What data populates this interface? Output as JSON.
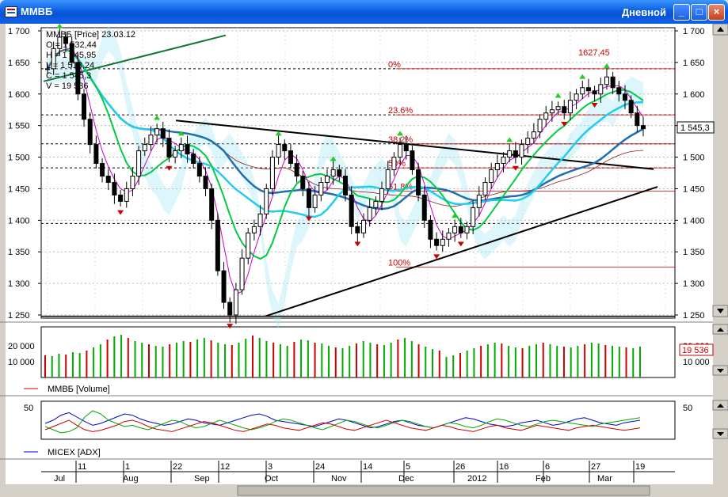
{
  "window": {
    "title": "ММВБ",
    "period": "Дневной",
    "minimize": "_",
    "maximize": "□",
    "close": "×"
  },
  "legend": {
    "header": "ММВБ [Price] 23.03.12",
    "lines": [
      "O = 1 532,44",
      "H = 1 545,95",
      "L = 1 518,24",
      "C = 1 545,3",
      "V = 19 536"
    ]
  },
  "volume_panel": {
    "label": "ММВБ [Volume]",
    "current": "19 536"
  },
  "adx_panel": {
    "label": "MICEX [ADX]"
  },
  "fib": [
    {
      "label": "0%",
      "value": 1640
    },
    {
      "label": "23.6%",
      "value": 1567
    },
    {
      "label": "38.2%",
      "value": 1521
    },
    {
      "label": "50%",
      "value": 1483
    },
    {
      "label": "61.8%",
      "value": 1446
    },
    {
      "label": "100%",
      "value": 1326
    }
  ],
  "peak_label": "1627,45",
  "last_price_label": "1 545,3",
  "time_axis": {
    "days": [
      "11",
      "1",
      "22",
      "12",
      "3",
      "24",
      "14",
      "5",
      "26",
      "16",
      "6",
      "27",
      "19"
    ],
    "months": [
      "Jul",
      "Aug",
      "Sep",
      "Oct",
      "Nov",
      "Dec",
      "2012",
      "Feb",
      "Mar"
    ]
  },
  "colors": {
    "bull": "#00aa00",
    "bear": "#cc0000",
    "sma_fast": "#cc00cc",
    "ema_green": "#00cc44",
    "ma_cyan": "#22ccee",
    "ma_blue": "#1f6fb0",
    "ma_brown": "#8b1a1a",
    "trend": "#000000"
  },
  "chart_data": [
    {
      "type": "line",
      "title": "ММВБ [Price]",
      "ylim": [
        1245,
        1705
      ],
      "y_ticks": [
        "1 700",
        "1 650",
        "1 600",
        "1 550",
        "1 500",
        "1 450",
        "1 400",
        "1 350",
        "1 300",
        "1 250"
      ],
      "x_range": [
        "Jul 2011",
        "Mar 2012"
      ],
      "series": [
        {
          "name": "Close",
          "values": [
            1640,
            1672,
            1690,
            1680,
            1650,
            1600,
            1560,
            1520,
            1490,
            1470,
            1460,
            1440,
            1430,
            1450,
            1470,
            1510,
            1520,
            1535,
            1545,
            1530,
            1500,
            1510,
            1520,
            1505,
            1490,
            1470,
            1450,
            1400,
            1320,
            1270,
            1250,
            1290,
            1340,
            1380,
            1390,
            1410,
            1450,
            1500,
            1520,
            1510,
            1490,
            1470,
            1450,
            1420,
            1440,
            1460,
            1470,
            1480,
            1470,
            1440,
            1390,
            1380,
            1400,
            1420,
            1430,
            1450,
            1480,
            1500,
            1520,
            1510,
            1480,
            1440,
            1400,
            1370,
            1360,
            1370,
            1380,
            1390,
            1380,
            1390,
            1420,
            1440,
            1460,
            1480,
            1490,
            1500,
            1510,
            1500,
            1520,
            1530,
            1540,
            1560,
            1570,
            1575,
            1580,
            1570,
            1590,
            1600,
            1610,
            1605,
            1600,
            1615,
            1627,
            1610,
            1600,
            1590,
            1570,
            1550,
            1545
          ]
        }
      ]
    },
    {
      "type": "bar",
      "title": "ММВБ [Volume]",
      "ylim": [
        0,
        32000
      ],
      "y_ticks": [
        "20 000",
        "10 000"
      ],
      "values": [
        14000,
        13500,
        15000,
        14500,
        16000,
        15500,
        17000,
        19000,
        21000,
        24000,
        26000,
        27000,
        25000,
        23000,
        22000,
        21000,
        20000,
        19500,
        21000,
        22000,
        23000,
        22500,
        24000,
        25000,
        23500,
        22000,
        21000,
        20500,
        22000,
        24500,
        26500,
        25000,
        23000,
        22000,
        21000,
        20000,
        22500,
        24000,
        23500,
        22000,
        21500,
        20000,
        19000,
        18500,
        20000,
        21500,
        23000,
        22000,
        21000,
        20500,
        22000,
        24000,
        25000,
        23000,
        21000,
        19500,
        18000,
        17000,
        13000,
        14000,
        15500,
        17000,
        18500,
        20000,
        21000,
        22000,
        21500,
        20000,
        19000,
        18500,
        20000,
        21000,
        22000,
        21000,
        20000,
        19500,
        19000,
        20000,
        21000,
        22000,
        21500,
        20500,
        20000,
        19500,
        19000,
        18500,
        19536
      ]
    },
    {
      "type": "line",
      "title": "MICEX [ADX]",
      "ylim": [
        0,
        60
      ],
      "y_ticks": [
        "50"
      ],
      "series": [
        {
          "name": "ADX",
          "values": [
            25,
            30,
            38,
            42,
            35,
            28,
            22,
            25,
            30,
            35,
            40,
            38,
            32,
            28,
            25,
            22,
            24,
            28,
            32,
            30,
            26,
            24,
            22,
            26,
            30,
            34,
            38,
            40,
            36,
            30,
            28,
            26,
            24,
            22,
            20,
            24,
            28,
            32,
            30,
            26,
            22,
            18,
            20,
            24,
            28,
            30,
            26,
            22,
            20,
            18,
            22,
            26,
            30,
            34,
            32,
            28,
            24,
            22,
            20,
            22,
            26,
            28,
            30,
            26,
            22,
            24,
            28,
            32,
            34,
            30,
            26,
            24,
            22,
            26,
            28,
            30
          ]
        },
        {
          "name": "+DI",
          "values": [
            20,
            15,
            10,
            12,
            18,
            35,
            45,
            40,
            30,
            25,
            20,
            22,
            18,
            15,
            20,
            25,
            30,
            28,
            22,
            18,
            20,
            25,
            30,
            26,
            22,
            18,
            15,
            18,
            22,
            28,
            32,
            30,
            26,
            22,
            18,
            15,
            20,
            25,
            30,
            28,
            24,
            20,
            18,
            22,
            26,
            30,
            28,
            24,
            20,
            18,
            22,
            26,
            24,
            20,
            18,
            22,
            28,
            32,
            30,
            26,
            22,
            20,
            24,
            28,
            30,
            28,
            26,
            24,
            22,
            20,
            24,
            26,
            28,
            30,
            32,
            34
          ]
        },
        {
          "name": "-DI",
          "values": [
            15,
            20,
            25,
            30,
            22,
            15,
            12,
            14,
            18,
            22,
            28,
            30,
            26,
            20,
            16,
            14,
            12,
            16,
            20,
            24,
            28,
            26,
            22,
            18,
            14,
            12,
            16,
            20,
            24,
            22,
            18,
            16,
            14,
            18,
            22,
            26,
            24,
            20,
            16,
            14,
            18,
            22,
            26,
            30,
            26,
            22,
            18,
            16,
            14,
            18,
            22,
            20,
            16,
            14,
            12,
            16,
            20,
            22,
            18,
            16,
            14,
            18,
            22,
            20,
            18,
            16,
            14,
            18,
            20,
            22,
            20,
            18,
            16,
            14,
            16,
            18
          ]
        }
      ]
    }
  ]
}
